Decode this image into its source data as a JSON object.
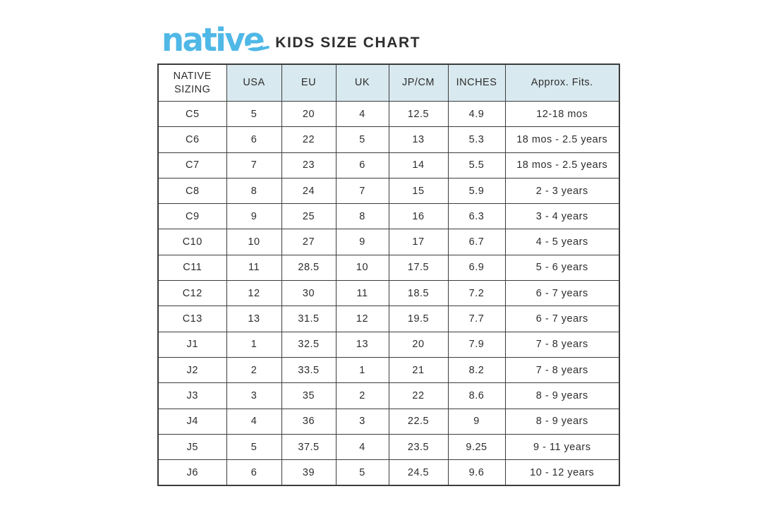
{
  "brand": {
    "logo_text": "native"
  },
  "page_title": "KIDS SIZE CHART",
  "colors": {
    "logo_blue": "#4FB8E7",
    "header_bg": "#D8E9EF",
    "table_border": "#3C3C3C",
    "text": "#2D2D2D"
  },
  "chart_data": {
    "type": "table",
    "title": "KIDS SIZE CHART",
    "columns": [
      "NATIVE SIZING",
      "USA",
      "EU",
      "UK",
      "JP/CM",
      "INCHES",
      "Approx. Fits."
    ],
    "rows": [
      [
        "C5",
        "5",
        "20",
        "4",
        "12.5",
        "4.9",
        "12-18 mos"
      ],
      [
        "C6",
        "6",
        "22",
        "5",
        "13",
        "5.3",
        "18 mos - 2.5 years"
      ],
      [
        "C7",
        "7",
        "23",
        "6",
        "14",
        "5.5",
        "18 mos - 2.5 years"
      ],
      [
        "C8",
        "8",
        "24",
        "7",
        "15",
        "5.9",
        "2 - 3 years"
      ],
      [
        "C9",
        "9",
        "25",
        "8",
        "16",
        "6.3",
        "3 - 4 years"
      ],
      [
        "C10",
        "10",
        "27",
        "9",
        "17",
        "6.7",
        "4 - 5 years"
      ],
      [
        "C11",
        "11",
        "28.5",
        "10",
        "17.5",
        "6.9",
        "5 - 6 years"
      ],
      [
        "C12",
        "12",
        "30",
        "11",
        "18.5",
        "7.2",
        "6 - 7 years"
      ],
      [
        "C13",
        "13",
        "31.5",
        "12",
        "19.5",
        "7.7",
        "6 - 7 years"
      ],
      [
        "J1",
        "1",
        "32.5",
        "13",
        "20",
        "7.9",
        "7 - 8 years"
      ],
      [
        "J2",
        "2",
        "33.5",
        "1",
        "21",
        "8.2",
        "7 - 8 years"
      ],
      [
        "J3",
        "3",
        "35",
        "2",
        "22",
        "8.6",
        "8 - 9 years"
      ],
      [
        "J4",
        "4",
        "36",
        "3",
        "22.5",
        "9",
        "8 - 9 years"
      ],
      [
        "J5",
        "5",
        "37.5",
        "4",
        "23.5",
        "9.25",
        "9 - 11 years"
      ],
      [
        "J6",
        "6",
        "39",
        "5",
        "24.5",
        "9.6",
        "10 - 12 years"
      ]
    ]
  }
}
